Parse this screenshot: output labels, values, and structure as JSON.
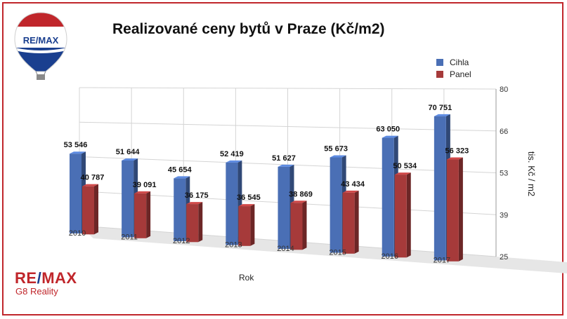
{
  "header": {
    "title": "Realizované ceny bytů v Praze (Kč/m2)",
    "balloon_text": "RE/MAX"
  },
  "branding": {
    "logo_left": "RE",
    "logo_slash": "/",
    "logo_right": "MAX",
    "logo_sub": "G8 Reality",
    "colors": {
      "red": "#c0262b",
      "blue": "#1a3f8f"
    }
  },
  "chart_data": {
    "type": "bar",
    "title": "Realizované ceny bytů v Praze (Kč/m2)",
    "xlabel": "Rok",
    "ylabel": "tis. Kč / m2",
    "categories": [
      "2010",
      "2011",
      "2012",
      "2013",
      "2014",
      "2015",
      "2016",
      "2017"
    ],
    "series": [
      {
        "name": "Cihla",
        "color": "#4a6fb5",
        "values": [
          53546,
          51644,
          45654,
          52419,
          51627,
          55673,
          63050,
          70751
        ],
        "labels": [
          "53 546",
          "51 644",
          "45 654",
          "52 419",
          "51 627",
          "55 673",
          "63 050",
          "70 751"
        ]
      },
      {
        "name": "Panel",
        "color": "#a63a3a",
        "values": [
          40787,
          39091,
          36175,
          36545,
          38869,
          43434,
          50534,
          56323
        ],
        "labels": [
          "40 787",
          "39 091",
          "36 175",
          "36 545",
          "38 869",
          "43 434",
          "50 534",
          "56 323"
        ]
      }
    ],
    "y_ticks": [
      "80",
      "66",
      "53",
      "39",
      "25"
    ],
    "ylim": [
      25,
      80
    ],
    "grid": true,
    "legend_position": "top-right"
  }
}
